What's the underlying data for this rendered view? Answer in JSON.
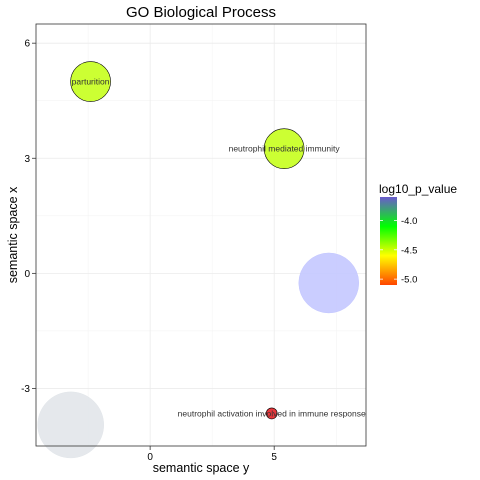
{
  "chart_data": {
    "type": "scatter",
    "title": "GO Biological Process",
    "xlabel": "semantic space y",
    "ylabel": "semantic space x",
    "xlim": [
      -4.6,
      8.7
    ],
    "ylim": [
      -4.5,
      6.5
    ],
    "xticks": [
      0,
      5
    ],
    "yticks": [
      -3,
      0,
      3,
      6
    ],
    "xtick_labels": [
      "0",
      "5"
    ],
    "ytick_labels": [
      "-3",
      "0",
      "3",
      "6"
    ],
    "grid": true,
    "legend": {
      "title": "log10_p_value",
      "placement": "right",
      "ticks": [
        -4.0,
        -4.5,
        -5.0
      ],
      "tick_labels": [
        "-4.0",
        "-4.5",
        "-5.0"
      ],
      "range": [
        -5.1,
        -3.6
      ],
      "colors": [
        "#FF4500",
        "#FFFF00",
        "#00FF00",
        "#6A5ACD"
      ]
    },
    "points": [
      {
        "label": "parturition",
        "x": -2.4,
        "y": 5.0,
        "log10_p_value": -4.25,
        "radius_px": 20,
        "color": "#CCFF33",
        "opacity": 1.0
      },
      {
        "label": "neutrophil mediated immunity",
        "x": 5.4,
        "y": 3.25,
        "log10_p_value": -4.25,
        "radius_px": 20,
        "color": "#CCFF33",
        "opacity": 1.0
      },
      {
        "label": "neutrophil activation involved in immune response",
        "x": 4.9,
        "y": -3.65,
        "log10_p_value": -5.0,
        "radius_px": 5.5,
        "color": "#E8373C",
        "opacity": 1.0
      },
      {
        "label": "",
        "x": 7.2,
        "y": -0.25,
        "log10_p_value": -3.6,
        "radius_px": 30,
        "color": "#C4C8FF",
        "opacity": 0.9
      },
      {
        "label": "",
        "x": -3.2,
        "y": -3.95,
        "log10_p_value": null,
        "radius_px": 33,
        "color": "#E2E6EA",
        "opacity": 0.9
      }
    ]
  }
}
